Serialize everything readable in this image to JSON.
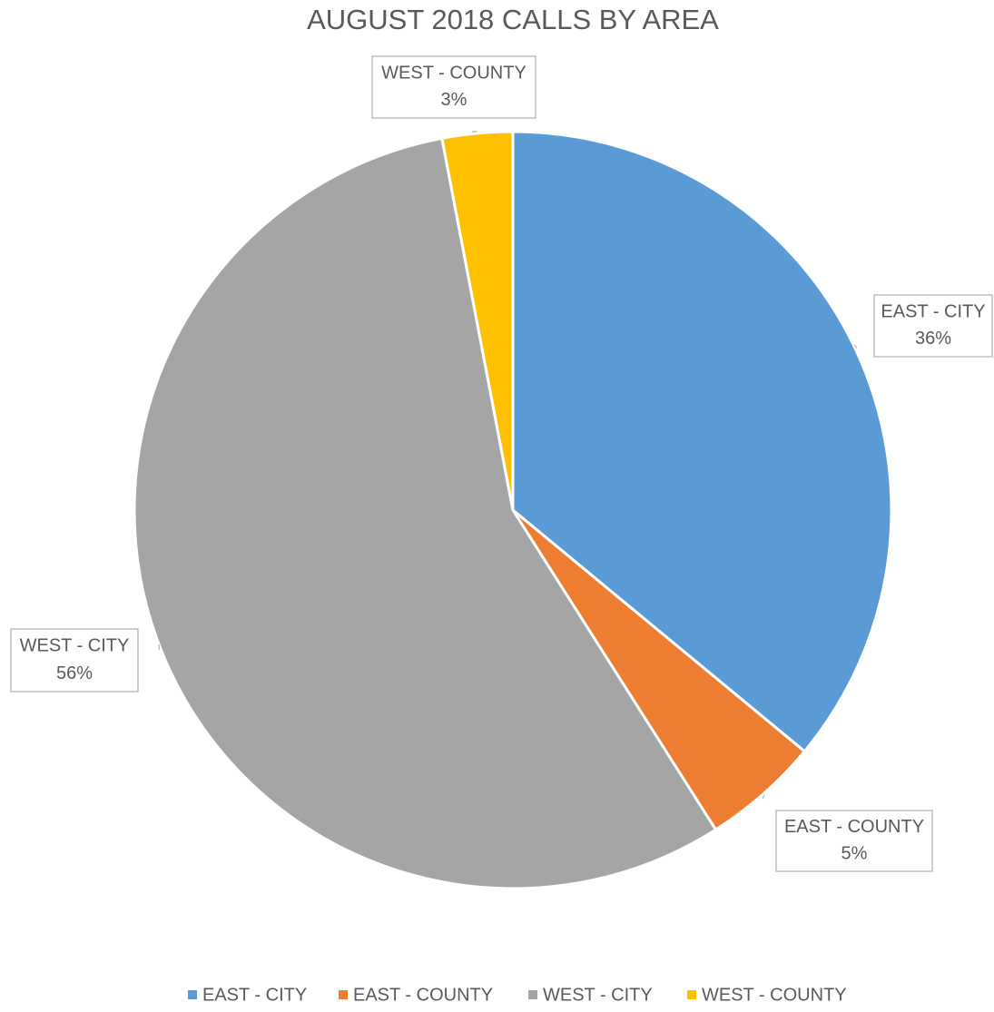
{
  "chart_data": {
    "type": "pie",
    "title": "AUGUST 2018 CALLS BY AREA",
    "categories": [
      "EAST - CITY",
      "EAST - COUNTY",
      "WEST - CITY",
      "WEST - COUNTY"
    ],
    "values": [
      36,
      5,
      56,
      3
    ],
    "value_labels": [
      "36%",
      "5%",
      "56%",
      "3%"
    ],
    "colors": [
      "#5b9bd5",
      "#ed7d31",
      "#a5a5a5",
      "#ffc000"
    ],
    "legend": "bottom"
  }
}
